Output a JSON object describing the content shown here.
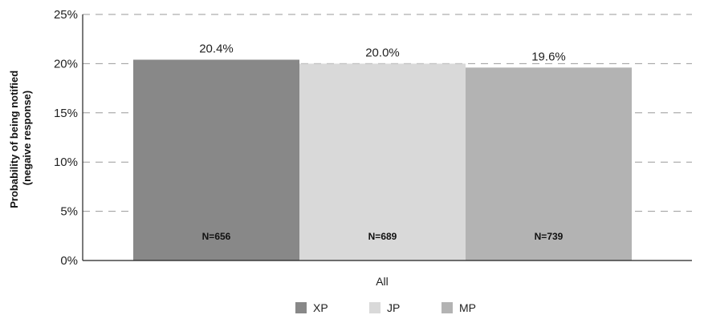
{
  "chart_data": {
    "type": "bar",
    "categories": [
      "All"
    ],
    "series": [
      {
        "name": "XP",
        "values": [
          20.4
        ],
        "label": "20.4%",
        "n_label": "N=656",
        "color": "#888888"
      },
      {
        "name": "JP",
        "values": [
          20.0
        ],
        "label": "20.0%",
        "n_label": "N=689",
        "color": "#d9d9d9"
      },
      {
        "name": "MP",
        "values": [
          19.6
        ],
        "label": "19.6%",
        "n_label": "N=739",
        "color": "#b3b3b3"
      }
    ],
    "ylabel_line1": "Probability of being notified",
    "ylabel_line2": "(negaive response)",
    "ylim": [
      0,
      25
    ],
    "yticks": [
      0,
      5,
      10,
      15,
      20,
      25
    ],
    "ytick_labels": [
      "0%",
      "5%",
      "10%",
      "15%",
      "20%",
      "25%"
    ],
    "grid": "dashed-horizontal",
    "legend_position": "bottom"
  }
}
